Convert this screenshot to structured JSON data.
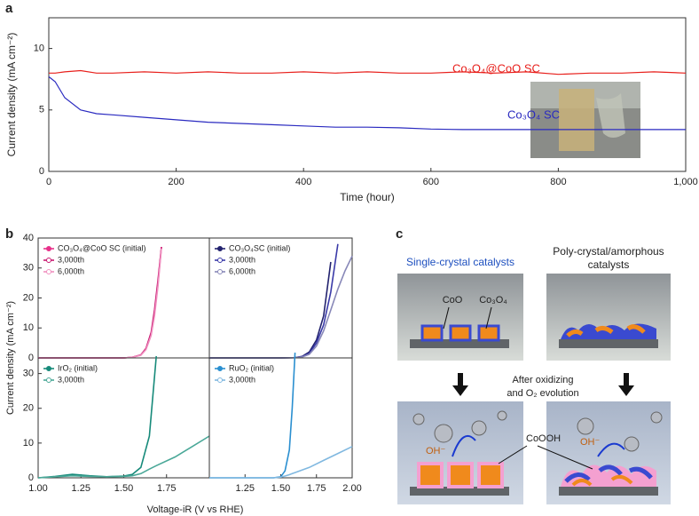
{
  "panel_labels": [
    "a",
    "b",
    "c"
  ],
  "chart_data": [
    {
      "type": "line",
      "xlabel": "Time (hour)",
      "ylabel": "Current density (mA cm⁻²)",
      "x": [
        0,
        10,
        25,
        50,
        75,
        100,
        150,
        200,
        250,
        300,
        350,
        400,
        450,
        500,
        550,
        600,
        650,
        700,
        750,
        800,
        850,
        900,
        950,
        1000
      ],
      "xlim": [
        0,
        1000
      ],
      "xticks": [
        0,
        200,
        400,
        600,
        800,
        {
          "value": 1000,
          "label": "1,000"
        }
      ],
      "ylim": [
        0,
        12.5
      ],
      "yticks": [
        0,
        5,
        10
      ],
      "series": [
        {
          "name": "Co₃O₄@CoO SC",
          "color": "#e8201c",
          "values": [
            8.0,
            8.0,
            8.1,
            8.2,
            8.0,
            8.0,
            8.1,
            8.0,
            8.1,
            8.0,
            8.0,
            8.1,
            8.0,
            8.1,
            8.0,
            8.0,
            8.1,
            8.0,
            8.1,
            7.9,
            8.0,
            8.0,
            8.1,
            8.0
          ]
        },
        {
          "name": "Co₃O₄ SC",
          "color": "#2a2ac0",
          "values": [
            7.7,
            7.3,
            6.0,
            5.0,
            4.7,
            4.6,
            4.4,
            4.2,
            4.0,
            3.9,
            3.8,
            3.7,
            3.6,
            3.6,
            3.55,
            3.45,
            3.4,
            3.4,
            3.4,
            3.4,
            3.4,
            3.4,
            3.4,
            3.4
          ]
        }
      ]
    },
    {
      "type": "line",
      "x": [
        1.0,
        1.2,
        1.4,
        1.5,
        1.55,
        1.6,
        1.63,
        1.66,
        1.68,
        1.7,
        1.72
      ],
      "xlim": [
        1,
        2
      ],
      "ylim": [
        0,
        40
      ],
      "yticks": [
        0,
        10,
        20,
        30,
        40
      ],
      "series": [
        {
          "name": "CO₃O₄@CoO SC (initial)",
          "color": "#e8308a",
          "values": [
            0,
            0,
            0,
            0,
            0.2,
            1,
            3,
            8,
            15,
            25,
            37
          ]
        },
        {
          "name": "3,000th",
          "color": "#c81870",
          "values": [
            0,
            0,
            0,
            0,
            0.2,
            1,
            3.2,
            8.5,
            16,
            26,
            37
          ]
        },
        {
          "name": "6,000th",
          "color": "#f090c0",
          "values": [
            0,
            0,
            0,
            0,
            0.2,
            0.9,
            2.8,
            7.5,
            14,
            24,
            36.5
          ]
        }
      ]
    },
    {
      "type": "line",
      "x": [
        1.0,
        1.3,
        1.5,
        1.6,
        1.65,
        1.7,
        1.75,
        1.8,
        1.85,
        1.9,
        1.95,
        2.0
      ],
      "xlim": [
        1,
        2
      ],
      "ylim": [
        0,
        40
      ],
      "series": [
        {
          "name": "CO₃O₄SC (initial)",
          "color": "#22226e",
          "values": [
            0,
            0,
            0,
            0.1,
            0.5,
            2,
            6,
            14,
            32,
            null,
            null,
            null
          ]
        },
        {
          "name": "3,000th",
          "color": "#3a3aa8",
          "values": [
            0,
            0,
            0,
            0.1,
            0.4,
            1.5,
            5,
            11,
            22,
            38,
            null,
            null
          ]
        },
        {
          "name": "6,000th",
          "color": "#8888b8",
          "values": [
            0,
            0,
            0,
            0.1,
            0.3,
            1.2,
            4,
            9,
            16,
            23,
            29,
            34
          ]
        }
      ]
    },
    {
      "type": "line",
      "x": [
        1.0,
        1.1,
        1.2,
        1.3,
        1.4,
        1.5,
        1.55,
        1.6,
        1.65,
        1.69,
        1.8,
        1.9,
        2.0
      ],
      "xlim": [
        1,
        2
      ],
      "xticks": [
        {
          "value": 1,
          "label": "1.00"
        },
        1.25,
        {
          "value": 1.5,
          "label": "1.50"
        },
        1.75
      ],
      "ylim": [
        0,
        34.5
      ],
      "yticks": [
        0,
        10,
        20,
        30
      ],
      "series": [
        {
          "name": "IrO₂ (initial)",
          "color": "#178a7a",
          "values": [
            0,
            0.4,
            1.0,
            0.6,
            0.3,
            0.5,
            1,
            3,
            12,
            35,
            null,
            null,
            null
          ]
        },
        {
          "name": "3,000th",
          "color": "#4aa898",
          "values": [
            0,
            0.3,
            0.6,
            0.4,
            0.3,
            0.4,
            0.6,
            1.2,
            2.5,
            3.5,
            6,
            9,
            12
          ]
        }
      ]
    },
    {
      "type": "line",
      "x": [
        1.0,
        1.25,
        1.45,
        1.5,
        1.53,
        1.56,
        1.58,
        1.6,
        1.7,
        1.8,
        1.9,
        2.0
      ],
      "xlim": [
        1,
        2
      ],
      "xticks": [
        1.25,
        {
          "value": 1.5,
          "label": "1.50"
        },
        1.75,
        {
          "value": 2,
          "label": "2.00"
        }
      ],
      "ylim": [
        0,
        34.5
      ],
      "series": [
        {
          "name": "RuO₂ (initial)",
          "color": "#2a8fd0",
          "values": [
            0,
            0,
            0,
            0.3,
            2,
            8,
            20,
            36,
            null,
            null,
            null,
            null
          ]
        },
        {
          "name": "3,000th",
          "color": "#80b8e0",
          "values": [
            0,
            0,
            0,
            0.2,
            0.5,
            0.9,
            1.2,
            1.5,
            3,
            5,
            7,
            9
          ]
        }
      ]
    }
  ],
  "panel_b": {
    "ylabel": "Current density (mA cm⁻²)",
    "xlabel": "Voltage-iR (V vs RHE)"
  },
  "diagram": {
    "single_title": "Single-crystal catalysts",
    "poly_title": [
      "Poly-crystal/amorphous",
      "catalysts"
    ],
    "coo": "CoO",
    "co3o4": "Co₃O₄",
    "step": [
      "After oxidizing",
      "and O₂ evolution"
    ],
    "oh_left": "OH⁻",
    "oh_right": "OH⁻",
    "cooh": "CoOOH"
  }
}
